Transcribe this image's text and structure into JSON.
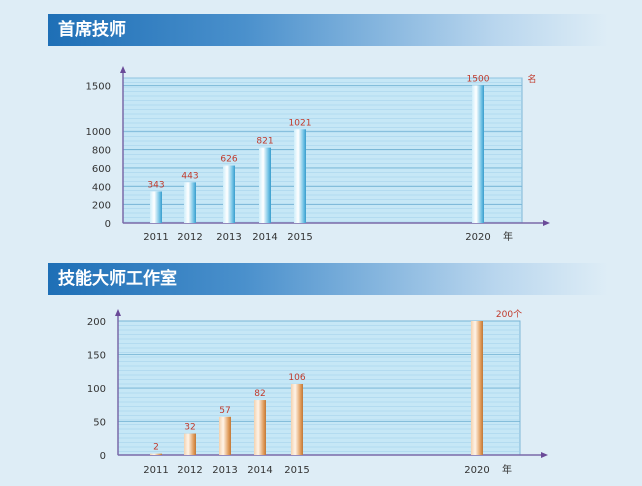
{
  "chart_data": [
    {
      "type": "bar",
      "title": "首席技师",
      "categories": [
        "2011",
        "2012",
        "2013",
        "2014",
        "2015",
        "2020"
      ],
      "values": [
        343,
        443,
        626,
        821,
        1021,
        1500
      ],
      "data_labels": [
        "343",
        "443",
        "626",
        "821",
        "1021",
        "1500"
      ],
      "yticks": [
        0,
        200,
        400,
        600,
        800,
        1000,
        1500
      ],
      "ylim": [
        0,
        1580
      ],
      "xunit": "年",
      "yunit": "名",
      "bar_color": "#5bb8e0",
      "label_color": "#c0392b",
      "grid": true
    },
    {
      "type": "bar",
      "title": "技能大师工作室",
      "categories": [
        "2011",
        "2012",
        "2013",
        "2014",
        "2015",
        "2020"
      ],
      "values": [
        2,
        32,
        57,
        82,
        106,
        200
      ],
      "data_labels": [
        "2",
        "32",
        "57",
        "82",
        "106",
        "200个"
      ],
      "yticks": [
        0,
        50,
        100,
        150,
        200
      ],
      "ylim": [
        0,
        200
      ],
      "xunit": "年",
      "yunit": "",
      "bar_color": "#e0a060",
      "label_color": "#c0392b",
      "grid": true
    }
  ]
}
